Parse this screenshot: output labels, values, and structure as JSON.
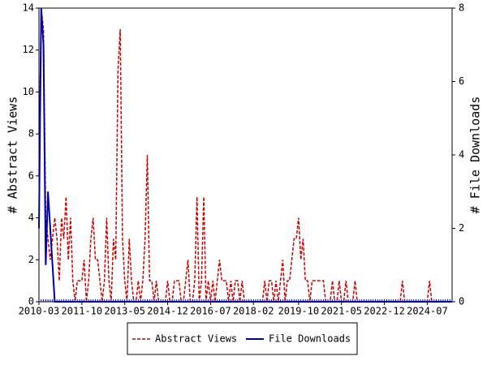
{
  "chart_data": {
    "type": "line",
    "y_label": "# Abstract Views",
    "y2_label": "# File Downloads",
    "categories": [
      "2010-03",
      null,
      null,
      null,
      null,
      null,
      null,
      null,
      null,
      null,
      null,
      null,
      null,
      null,
      null,
      null,
      null,
      null,
      null,
      "2011-10",
      null,
      null,
      null,
      null,
      null,
      null,
      null,
      null,
      null,
      null,
      null,
      null,
      null,
      null,
      null,
      null,
      null,
      null,
      "2013-05",
      null,
      null,
      null,
      null,
      null,
      null,
      null,
      null,
      null,
      null,
      null,
      null,
      null,
      null,
      null,
      null,
      null,
      null,
      "2014-12",
      null,
      null,
      null,
      null,
      null,
      null,
      null,
      null,
      null,
      null,
      null,
      null,
      null,
      null,
      null,
      null,
      null,
      null,
      "2016-07",
      null,
      null,
      null,
      null,
      null,
      null,
      null,
      null,
      null,
      null,
      null,
      null,
      null,
      null,
      null,
      null,
      null,
      null,
      "2018-02",
      null,
      null,
      null,
      null,
      null,
      null,
      null,
      null,
      null,
      null,
      null,
      null,
      null,
      null,
      null,
      null,
      null,
      null,
      null,
      "2019-10",
      null,
      null,
      null,
      null,
      null,
      null,
      null,
      null,
      null,
      null,
      null,
      null,
      null,
      null,
      null,
      null,
      null,
      null,
      "2021-05",
      null,
      null,
      null,
      null,
      null,
      null,
      null,
      null,
      null,
      null,
      null,
      null,
      null,
      null,
      null,
      null,
      null,
      null,
      "2022-12",
      null,
      null,
      null,
      null,
      null,
      null,
      null,
      null,
      null,
      null,
      null,
      null,
      null,
      null,
      null,
      null,
      null,
      null,
      "2024-07",
      null,
      null,
      null,
      null,
      null,
      null,
      null,
      null,
      null,
      null,
      null
    ],
    "series": [
      {
        "name": "Abstract Views",
        "color": "#cc0000",
        "dashed": true,
        "values": [
          6,
          14,
          13,
          4,
          3,
          2,
          3,
          4,
          3,
          1,
          4,
          3,
          5,
          2,
          4,
          1,
          0,
          1,
          1,
          1,
          2,
          0,
          1,
          3,
          4,
          2,
          2,
          1,
          0,
          1,
          4,
          1,
          0,
          3,
          2,
          11,
          13,
          3,
          1,
          0,
          3,
          1,
          0,
          0,
          1,
          0,
          1,
          3,
          7,
          1,
          1,
          0,
          1,
          0,
          0,
          0,
          0,
          1,
          0,
          0,
          1,
          1,
          1,
          0,
          0,
          1,
          2,
          0,
          0,
          1,
          5,
          0,
          1,
          5,
          0,
          1,
          0,
          1,
          0,
          1,
          2,
          1,
          1,
          1,
          0,
          1,
          0,
          1,
          1,
          0,
          1,
          0,
          0,
          0,
          0,
          0,
          0,
          0,
          0,
          0,
          1,
          0,
          1,
          1,
          0,
          1,
          0,
          1,
          2,
          0,
          1,
          1,
          2,
          3,
          3,
          4,
          2,
          3,
          1,
          1,
          0,
          1,
          1,
          1,
          1,
          1,
          1,
          0,
          0,
          0,
          1,
          0,
          0,
          1,
          0,
          0,
          1,
          0,
          0,
          0,
          1,
          0,
          0,
          0,
          0,
          0,
          0,
          0,
          0,
          0,
          0,
          0,
          0,
          0,
          0,
          0,
          0,
          0,
          0,
          0,
          0,
          1,
          0,
          0,
          0,
          0,
          0,
          0,
          0,
          0,
          0,
          0,
          0,
          1,
          0,
          0,
          0,
          0,
          0,
          0,
          0,
          0,
          0,
          0
        ]
      },
      {
        "name": "File Downloads",
        "color": "#0000aa",
        "dashed": false,
        "axis": "y2",
        "values": [
          2,
          8,
          7,
          1,
          3,
          2,
          1,
          0,
          0,
          0,
          0,
          0,
          0,
          0,
          0,
          0,
          0,
          0,
          0,
          0,
          0,
          0,
          0,
          0,
          0,
          0,
          0,
          0,
          0,
          0,
          0,
          0,
          0,
          0,
          0,
          0,
          0,
          0,
          0,
          0,
          0,
          0,
          0,
          0,
          0,
          0,
          0,
          0,
          0,
          0,
          0,
          0,
          0,
          0,
          0,
          0,
          0,
          0,
          0,
          0,
          0,
          0,
          0,
          0,
          0,
          0,
          0,
          0,
          0,
          0,
          0,
          0,
          0,
          0,
          0,
          0,
          0,
          0,
          0,
          0,
          0,
          0,
          0,
          0,
          0,
          0,
          0,
          0,
          0,
          0,
          0,
          0,
          0,
          0,
          0,
          0,
          0,
          0,
          0,
          0,
          0,
          0,
          0,
          0,
          0,
          0,
          0,
          0,
          0,
          0,
          0,
          0,
          0,
          0,
          0,
          0,
          0,
          0,
          0,
          0,
          0,
          0,
          0,
          0,
          0,
          0,
          0,
          0,
          0,
          0,
          0,
          0,
          0,
          0,
          0,
          0,
          0,
          0,
          0,
          0,
          0,
          0,
          0,
          0,
          0,
          0,
          0,
          0,
          0,
          0,
          0,
          0,
          0,
          0,
          0,
          0,
          0,
          0,
          0,
          0,
          0,
          0,
          0,
          0,
          0,
          0,
          0,
          0,
          0,
          0,
          0,
          0,
          0,
          0,
          0,
          0,
          0,
          0,
          0,
          0,
          0,
          0,
          0,
          0
        ]
      }
    ],
    "ylim": [
      0,
      14
    ],
    "yticks": [
      0,
      2,
      4,
      6,
      8,
      10,
      12,
      14
    ],
    "y2lim": [
      0,
      8
    ],
    "y2ticks": [
      0,
      2,
      4,
      6,
      8
    ],
    "grid": false
  }
}
